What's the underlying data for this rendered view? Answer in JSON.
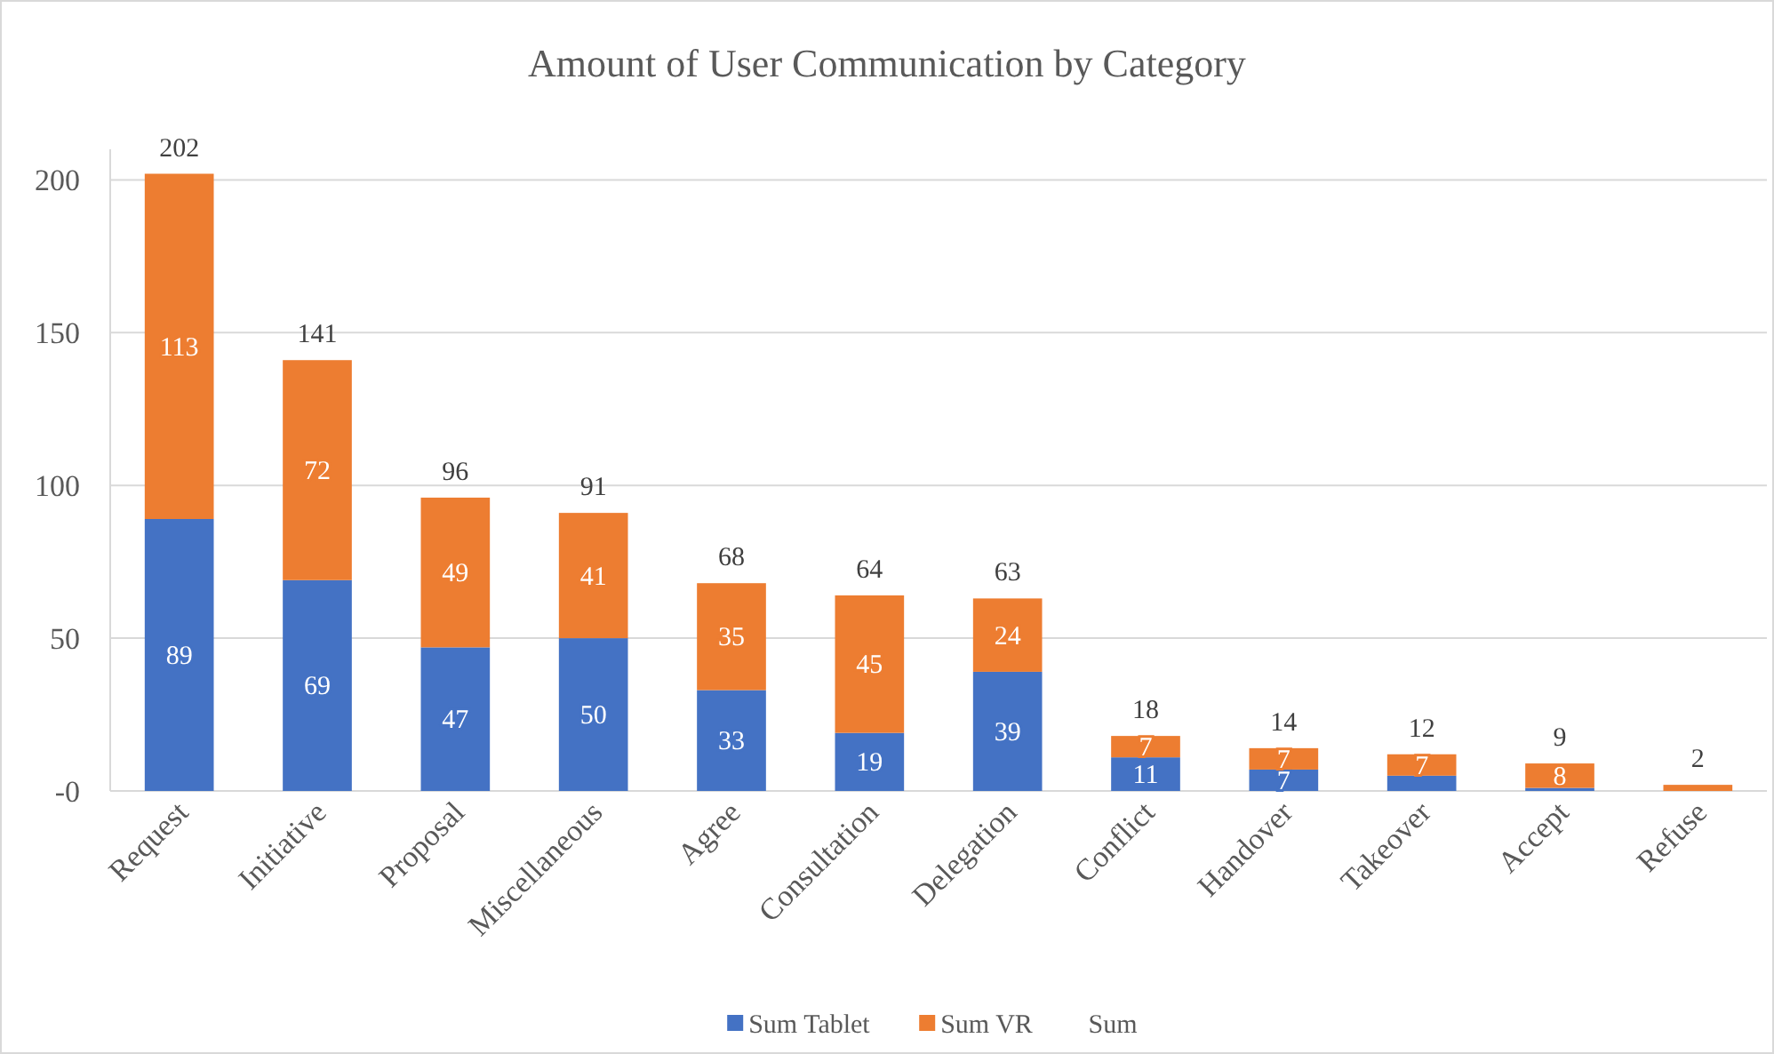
{
  "chart_data": {
    "type": "bar",
    "title": "Amount of User Communication by Category",
    "categories": [
      "Request",
      "Initiative",
      "Proposal",
      "Miscellaneous",
      "Agree",
      "Consultation",
      "Delegation",
      "Conflict",
      "Handover",
      "Takeover",
      "Accept",
      "Refuse"
    ],
    "series": [
      {
        "name": "Sum Tablet",
        "color": "#4472c4",
        "values": [
          89,
          69,
          47,
          50,
          33,
          19,
          39,
          11,
          7,
          5,
          1,
          0
        ],
        "value_labels": [
          "89",
          "69",
          "47",
          "50",
          "33",
          "19",
          "39",
          "11",
          "7",
          null,
          null,
          null
        ]
      },
      {
        "name": "Sum VR",
        "color": "#ed7d31",
        "values": [
          113,
          72,
          49,
          41,
          35,
          45,
          24,
          7,
          7,
          7,
          8,
          2
        ],
        "value_labels": [
          "113",
          "72",
          "49",
          "41",
          "35",
          "45",
          "24",
          "7",
          "7",
          "7",
          "8",
          null
        ]
      },
      {
        "name": "Sum",
        "color": null,
        "values": [
          null,
          null,
          null,
          null,
          null,
          null,
          null,
          null,
          null,
          null,
          null,
          null
        ]
      }
    ],
    "stacked": true,
    "totals": [
      "202",
      "141",
      "96",
      "91",
      "68",
      "64",
      "63",
      "18",
      "14",
      "12",
      "9",
      "2"
    ],
    "ylim": [
      0,
      210
    ],
    "yticks": [
      {
        "value": 0,
        "label": "-0"
      },
      50,
      100,
      150,
      200
    ],
    "grid": "y",
    "legend": "bottom"
  }
}
